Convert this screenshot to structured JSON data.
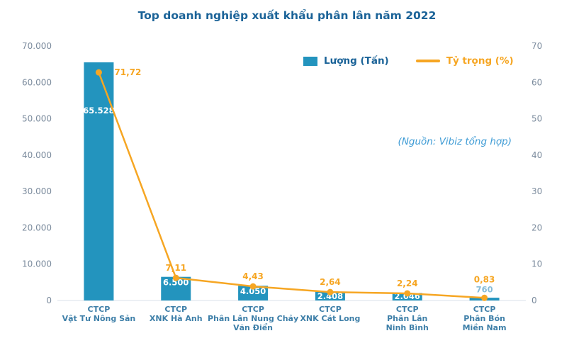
{
  "title": "Top doanh nghiệp xuất khẩu phân lân năm 2022",
  "source_note": "(Nguồn: Vibiz tổng hợp)",
  "legend": {
    "bars": "Lượng (Tấn)",
    "line": "Tỷ trọng (%)"
  },
  "colors": {
    "bar": "#2394BE",
    "line": "#F6A623",
    "title": "#1B6398",
    "axis_text": "#7B8B9D",
    "category_text": "#3E7FA8",
    "value_label": "#FFFFFF",
    "small_value_label": "#86BCD8",
    "source_text": "#3D9BD5",
    "baseline": "#D9E2EA"
  },
  "chart_data": {
    "type": "combo-bar-line",
    "title": "Top doanh nghiệp xuất khẩu phân lân năm 2022",
    "categories": [
      [
        "CTCP",
        "Vật Tư Nông Sản"
      ],
      [
        "CTCP",
        "XNK Hà Anh"
      ],
      [
        "CTCP",
        "Phân Lân Nung Chảy",
        "Văn Điển"
      ],
      [
        "CTCP",
        "XNK Cát Long"
      ],
      [
        "CTCP",
        "Phân Lân",
        "Ninh Bình"
      ],
      [
        "CTCP",
        "Phân Bón",
        "Miền Nam"
      ]
    ],
    "series": [
      {
        "name": "Lượng (Tấn)",
        "type": "bar",
        "axis": "left",
        "values": [
          65528,
          6500,
          4050,
          2408,
          2046,
          760
        ],
        "labels": [
          "65.528",
          "6.500",
          "4.050",
          "2.408",
          "2.046",
          "760"
        ]
      },
      {
        "name": "Tỷ trọng (%)",
        "type": "line",
        "axis": "right",
        "values": [
          71.72,
          7.11,
          4.43,
          2.64,
          2.24,
          0.83
        ],
        "labels": [
          "71,72",
          "7,11",
          "4,43",
          "2,64",
          "2,24",
          "0,83"
        ]
      }
    ],
    "left_axis": {
      "min": 0,
      "max": 70000,
      "ticks": [
        "0",
        "10.000",
        "20.000",
        "30.000",
        "40.000",
        "50.000",
        "60.000",
        "70.000"
      ]
    },
    "right_axis": {
      "min": 0,
      "max": 70,
      "plot_max": 80,
      "ticks": [
        "0",
        "10",
        "20",
        "30",
        "40",
        "50",
        "60",
        "70"
      ]
    },
    "grid": false,
    "legend_position": "top-right"
  }
}
